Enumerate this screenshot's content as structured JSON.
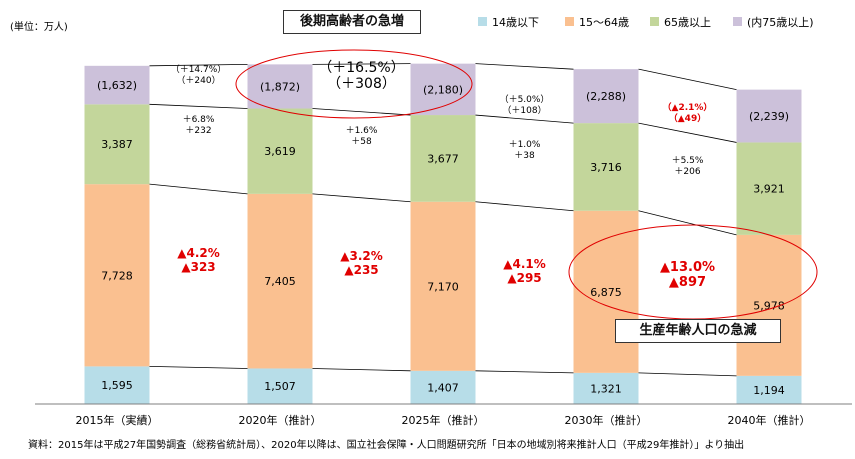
{
  "chart_data": {
    "type": "bar",
    "stacked": true,
    "unit_label": "(単位：万人)",
    "categories": [
      "2015年（実績）",
      "2020年（推計）",
      "2025年（推計）",
      "2030年（推計）",
      "2040年（推計）"
    ],
    "series": [
      {
        "name": "14歳以下",
        "color": "#b7dde8",
        "values": [
          1595,
          1507,
          1407,
          1321,
          1194
        ],
        "labels": [
          "1,595",
          "1,507",
          "1,407",
          "1,321",
          "1,194"
        ]
      },
      {
        "name": "15～64歳",
        "color": "#fac090",
        "values": [
          7728,
          7405,
          7170,
          6875,
          5978
        ],
        "labels": [
          "7,728",
          "7,405",
          "7,170",
          "6,875",
          "5,978"
        ]
      },
      {
        "name": "65歳以上",
        "color": "#c3d69b",
        "values": [
          3387,
          3619,
          3677,
          3716,
          3921
        ],
        "labels": [
          "3,387",
          "3,619",
          "3,677",
          "3,716",
          "3,921"
        ]
      },
      {
        "name": "(内75歳以上)",
        "color": "#ccc1da",
        "values": [
          1632,
          1872,
          2180,
          2288,
          2239
        ],
        "labels": [
          "(1,632)",
          "(1,872)",
          "(2,180)",
          "(2,288)",
          "(2,239)"
        ]
      }
    ],
    "change_annotations": {
      "age_75_plus": [
        {
          "lines": [
            "（＋14.7%）",
            "（＋240）"
          ],
          "color": "#000000"
        },
        {
          "lines": [
            "（＋16.5%）",
            "（＋308）"
          ],
          "color": "#000000",
          "large": true
        },
        {
          "lines": [
            "（＋5.0%）",
            "（＋108）"
          ],
          "color": "#000000"
        },
        {
          "lines": [
            "（▲2.1%）",
            "（▲49）"
          ],
          "color": "#e00000"
        }
      ],
      "age_65_plus": [
        {
          "lines": [
            "＋6.8%",
            "＋232"
          ],
          "color": "#000000"
        },
        {
          "lines": [
            "＋1.6%",
            "＋58"
          ],
          "color": "#000000"
        },
        {
          "lines": [
            "＋1.0%",
            "＋38"
          ],
          "color": "#000000"
        },
        {
          "lines": [
            "＋5.5%",
            "＋206"
          ],
          "color": "#000000"
        }
      ],
      "age_15_64": [
        {
          "lines": [
            "▲4.2%",
            "▲323"
          ],
          "color": "#e00000"
        },
        {
          "lines": [
            "▲3.2%",
            "▲235"
          ],
          "color": "#e00000"
        },
        {
          "lines": [
            "▲4.1%",
            "▲295"
          ],
          "color": "#e00000"
        },
        {
          "lines": [
            "▲13.0%",
            "▲897"
          ],
          "color": "#e00000",
          "large": true
        }
      ]
    },
    "callouts": [
      "後期高齢者の急増",
      "生産年齢人口の急減"
    ],
    "source_note": "資料：2015年は平成27年国勢調査（総務省統計局）、2020年以降は、国立社会保障・人口問題研究所「日本の地域別将来推計人口（平成29年推計）」より抽出",
    "legend_position": "top-right",
    "grid": false
  }
}
